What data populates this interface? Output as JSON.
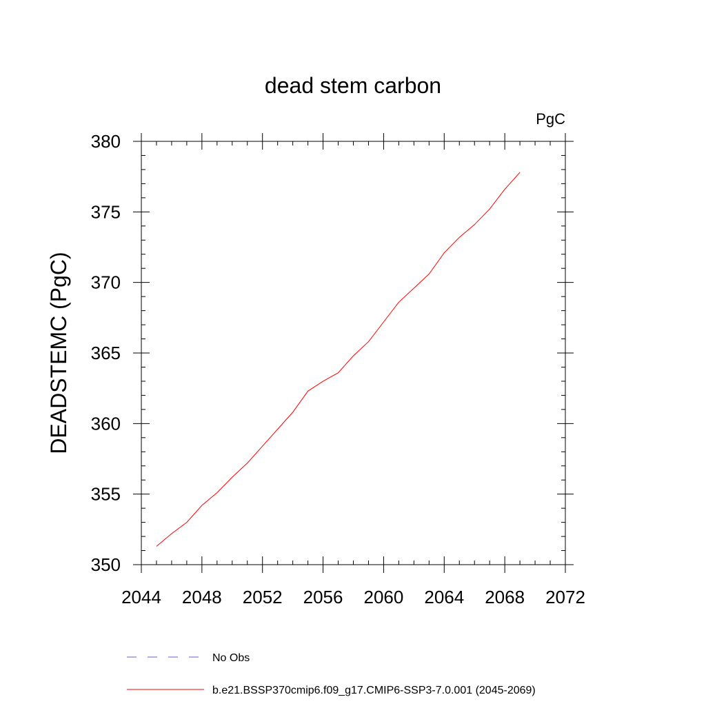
{
  "chart_data": {
    "type": "line",
    "title": "dead stem carbon",
    "units": "PgC",
    "xlabel": "",
    "ylabel": "DEADSTEMC  (PgC)",
    "xlim": [
      2044,
      2072
    ],
    "ylim": [
      350,
      380
    ],
    "xticks": [
      2044,
      2048,
      2052,
      2056,
      2060,
      2064,
      2068,
      2072
    ],
    "yticks": [
      350,
      355,
      360,
      365,
      370,
      375,
      380
    ],
    "grid": false,
    "legend_position": "bottom-left",
    "series": [
      {
        "name": "b.e21.BSSP370cmip6.f09_g17.CMIP6-SSP3-7.0.001 (2045-2069)",
        "color": "#ff0000",
        "dash": "solid",
        "x": [
          2045,
          2046,
          2047,
          2048,
          2049,
          2050,
          2051,
          2052,
          2053,
          2054,
          2055,
          2056,
          2057,
          2058,
          2059,
          2060,
          2061,
          2062,
          2063,
          2064,
          2065,
          2066,
          2067,
          2068,
          2069
        ],
        "y": [
          351.3,
          352.2,
          353.0,
          354.2,
          355.1,
          356.2,
          357.2,
          358.4,
          359.6,
          360.8,
          362.3,
          363.0,
          363.6,
          364.8,
          365.8,
          367.2,
          368.6,
          369.6,
          370.6,
          372.1,
          373.2,
          374.1,
          375.2,
          376.6,
          377.8
        ]
      }
    ],
    "legend": [
      {
        "label": "No Obs",
        "color": "#6a5acd",
        "dash": "dashed"
      },
      {
        "label": "b.e21.BSSP370cmip6.f09_g17.CMIP6-SSP3-7.0.001 (2045-2069)",
        "color": "#ff0000",
        "dash": "solid"
      }
    ]
  }
}
